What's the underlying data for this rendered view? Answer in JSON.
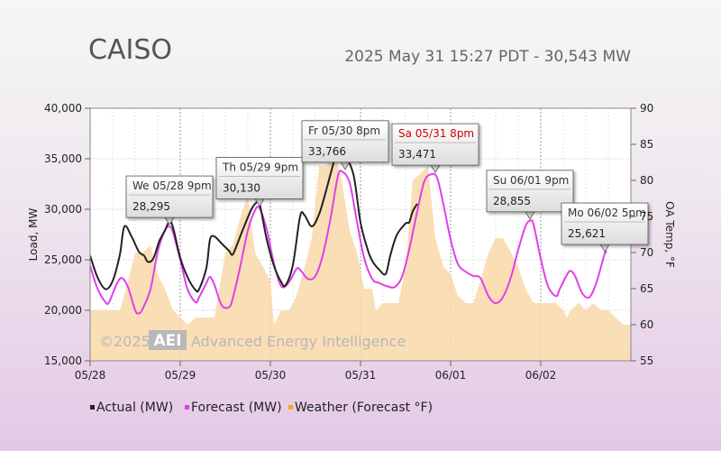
{
  "header": {
    "title": "CAISO",
    "subtitle": "2025 May 31 15:27 PDT - 30,543 MW"
  },
  "watermark": {
    "copyright": "©2025",
    "logo": "AEI",
    "company": "Advanced Energy Intelligence"
  },
  "colors": {
    "actual": "#222222",
    "forecast": "#e040e8",
    "weather": "#f9d8a8",
    "weather_legend": "#f5a623"
  },
  "chart_data": {
    "type": "line",
    "xlabel": "",
    "ylabel": "Load, MW",
    "y2label": "OA Temp, °F",
    "x_unit": "days since 05/28 00:00",
    "x_range": [
      0,
      6
    ],
    "ylim": [
      15000,
      40000
    ],
    "y2lim": [
      55,
      90
    ],
    "y_ticks": [
      "15,000",
      "20,000",
      "25,000",
      "30,000",
      "35,000",
      "40,000"
    ],
    "y_tick_values": [
      15000,
      20000,
      25000,
      30000,
      35000,
      40000
    ],
    "y2_ticks": [
      "55",
      "60",
      "65",
      "70",
      "75",
      "80",
      "85",
      "90"
    ],
    "y2_tick_values": [
      55,
      60,
      65,
      70,
      75,
      80,
      85,
      90
    ],
    "x_ticks": [
      "05/28",
      "05/29",
      "05/30",
      "05/31",
      "06/01",
      "06/02"
    ],
    "x_tick_values": [
      0,
      1,
      2,
      3,
      4,
      5
    ],
    "grid": true,
    "legend_position": "bottom",
    "legend": [
      "Actual (MW)",
      "Forecast (MW)",
      "Weather (Forecast °F)"
    ],
    "series": [
      {
        "name": "Actual (MW)",
        "axis": "left",
        "points": [
          [
            0,
            25400
          ],
          [
            0.08,
            23300
          ],
          [
            0.17,
            22100
          ],
          [
            0.25,
            22900
          ],
          [
            0.33,
            25500
          ],
          [
            0.38,
            28300
          ],
          [
            0.46,
            27300
          ],
          [
            0.54,
            25800
          ],
          [
            0.6,
            25400
          ],
          [
            0.64,
            24800
          ],
          [
            0.7,
            25100
          ],
          [
            0.77,
            26900
          ],
          [
            0.83,
            27900
          ],
          [
            0.88,
            28800
          ],
          [
            0.92,
            28200
          ],
          [
            1.0,
            25200
          ],
          [
            1.08,
            23300
          ],
          [
            1.17,
            22000
          ],
          [
            1.21,
            22100
          ],
          [
            1.29,
            24200
          ],
          [
            1.33,
            27000
          ],
          [
            1.38,
            27300
          ],
          [
            1.46,
            26600
          ],
          [
            1.54,
            25900
          ],
          [
            1.58,
            25500
          ],
          [
            1.63,
            26500
          ],
          [
            1.7,
            28100
          ],
          [
            1.79,
            30000
          ],
          [
            1.85,
            30700
          ],
          [
            1.88,
            30600
          ],
          [
            1.96,
            27000
          ],
          [
            2.04,
            24400
          ],
          [
            2.12,
            22800
          ],
          [
            2.17,
            22500
          ],
          [
            2.25,
            24500
          ],
          [
            2.33,
            29300
          ],
          [
            2.38,
            29400
          ],
          [
            2.46,
            28300
          ],
          [
            2.54,
            29500
          ],
          [
            2.62,
            31900
          ],
          [
            2.71,
            34900
          ],
          [
            2.76,
            36300
          ],
          [
            2.8,
            35900
          ],
          [
            2.92,
            33500
          ],
          [
            3.0,
            28700
          ],
          [
            3.08,
            26000
          ],
          [
            3.13,
            24900
          ],
          [
            3.21,
            24000
          ],
          [
            3.28,
            23600
          ],
          [
            3.33,
            25400
          ],
          [
            3.4,
            27400
          ],
          [
            3.5,
            28600
          ],
          [
            3.54,
            28700
          ],
          [
            3.58,
            29800
          ],
          [
            3.63,
            30543
          ]
        ]
      },
      {
        "name": "Forecast (MW)",
        "axis": "left",
        "points": [
          [
            0,
            24400
          ],
          [
            0.08,
            22200
          ],
          [
            0.17,
            20800
          ],
          [
            0.21,
            20800
          ],
          [
            0.29,
            22500
          ],
          [
            0.35,
            23200
          ],
          [
            0.42,
            22300
          ],
          [
            0.5,
            20000
          ],
          [
            0.54,
            19700
          ],
          [
            0.58,
            20100
          ],
          [
            0.67,
            22100
          ],
          [
            0.75,
            25800
          ],
          [
            0.83,
            27900
          ],
          [
            0.88,
            28300
          ],
          [
            0.92,
            27700
          ],
          [
            1.0,
            25000
          ],
          [
            1.08,
            22100
          ],
          [
            1.17,
            20800
          ],
          [
            1.21,
            21300
          ],
          [
            1.29,
            22700
          ],
          [
            1.33,
            23300
          ],
          [
            1.38,
            22500
          ],
          [
            1.46,
            20500
          ],
          [
            1.54,
            20300
          ],
          [
            1.58,
            21100
          ],
          [
            1.67,
            24500
          ],
          [
            1.75,
            27900
          ],
          [
            1.83,
            29900
          ],
          [
            1.88,
            30100
          ],
          [
            1.96,
            28000
          ],
          [
            2.04,
            24600
          ],
          [
            2.12,
            22400
          ],
          [
            2.2,
            22700
          ],
          [
            2.29,
            24100
          ],
          [
            2.33,
            24000
          ],
          [
            2.42,
            23100
          ],
          [
            2.5,
            23400
          ],
          [
            2.58,
            25400
          ],
          [
            2.67,
            29200
          ],
          [
            2.75,
            33300
          ],
          [
            2.8,
            33700
          ],
          [
            2.88,
            32600
          ],
          [
            2.96,
            28800
          ],
          [
            3.04,
            25200
          ],
          [
            3.13,
            23100
          ],
          [
            3.21,
            22700
          ],
          [
            3.29,
            22400
          ],
          [
            3.38,
            22300
          ],
          [
            3.46,
            23300
          ],
          [
            3.54,
            26000
          ],
          [
            3.63,
            29800
          ],
          [
            3.71,
            32800
          ],
          [
            3.79,
            33471
          ],
          [
            3.85,
            33100
          ],
          [
            3.92,
            30500
          ],
          [
            4.0,
            27000
          ],
          [
            4.08,
            24600
          ],
          [
            4.17,
            23800
          ],
          [
            4.25,
            23400
          ],
          [
            4.33,
            23200
          ],
          [
            4.42,
            21400
          ],
          [
            4.5,
            20700
          ],
          [
            4.58,
            21300
          ],
          [
            4.67,
            23300
          ],
          [
            4.75,
            26000
          ],
          [
            4.83,
            28300
          ],
          [
            4.88,
            28855
          ],
          [
            4.92,
            28500
          ],
          [
            5.0,
            25100
          ],
          [
            5.08,
            22400
          ],
          [
            5.17,
            21400
          ],
          [
            5.21,
            22100
          ],
          [
            5.29,
            23500
          ],
          [
            5.33,
            23900
          ],
          [
            5.38,
            23400
          ],
          [
            5.46,
            21700
          ],
          [
            5.54,
            21300
          ],
          [
            5.62,
            22800
          ],
          [
            5.71,
            25621
          ],
          [
            5.73,
            25700
          ]
        ]
      },
      {
        "name": "Weather (Forecast °F)",
        "axis": "right",
        "points": [
          [
            0,
            62
          ],
          [
            0.33,
            62
          ],
          [
            0.42,
            66
          ],
          [
            0.5,
            70
          ],
          [
            0.58,
            70
          ],
          [
            0.67,
            71
          ],
          [
            0.75,
            67
          ],
          [
            0.83,
            65
          ],
          [
            0.92,
            62
          ],
          [
            1.0,
            61
          ],
          [
            1.08,
            60
          ],
          [
            1.17,
            61
          ],
          [
            1.25,
            61
          ],
          [
            1.38,
            61
          ],
          [
            1.5,
            70
          ],
          [
            1.58,
            71
          ],
          [
            1.67,
            75
          ],
          [
            1.75,
            78
          ],
          [
            1.83,
            70
          ],
          [
            1.92,
            68
          ],
          [
            2.0,
            66
          ],
          [
            2.04,
            60
          ],
          [
            2.12,
            62
          ],
          [
            2.21,
            62
          ],
          [
            2.29,
            64
          ],
          [
            2.38,
            68
          ],
          [
            2.46,
            72
          ],
          [
            2.54,
            82
          ],
          [
            2.62,
            82
          ],
          [
            2.71,
            84
          ],
          [
            2.79,
            80
          ],
          [
            2.88,
            73
          ],
          [
            2.96,
            70
          ],
          [
            3.04,
            65
          ],
          [
            3.13,
            65
          ],
          [
            3.17,
            62
          ],
          [
            3.25,
            63
          ],
          [
            3.33,
            63
          ],
          [
            3.42,
            63
          ],
          [
            3.5,
            68
          ],
          [
            3.58,
            80
          ],
          [
            3.67,
            81
          ],
          [
            3.75,
            82
          ],
          [
            3.83,
            72
          ],
          [
            3.92,
            68
          ],
          [
            4.0,
            67
          ],
          [
            4.08,
            64
          ],
          [
            4.17,
            63
          ],
          [
            4.25,
            63
          ],
          [
            4.33,
            66
          ],
          [
            4.42,
            70
          ],
          [
            4.5,
            72
          ],
          [
            4.58,
            72
          ],
          [
            4.67,
            70
          ],
          [
            4.75,
            68
          ],
          [
            4.83,
            65
          ],
          [
            4.92,
            63
          ],
          [
            5.0,
            63
          ],
          [
            5.17,
            63
          ],
          [
            5.25,
            62
          ],
          [
            5.29,
            61
          ],
          [
            5.33,
            62
          ],
          [
            5.42,
            63
          ],
          [
            5.5,
            62
          ],
          [
            5.58,
            63
          ],
          [
            5.67,
            62
          ],
          [
            5.75,
            62
          ],
          [
            5.83,
            61
          ],
          [
            5.92,
            60
          ],
          [
            6.0,
            60
          ]
        ]
      }
    ],
    "annotations": [
      {
        "x": 0.88,
        "y": 28295,
        "label": "We 05/28 9pm",
        "value": "28,295",
        "highlight": false
      },
      {
        "x": 1.88,
        "y": 30130,
        "label": "Th 05/29 9pm",
        "value": "30,130",
        "highlight": false
      },
      {
        "x": 2.83,
        "y": 33766,
        "label": "Fr 05/30 8pm",
        "value": "33,766",
        "highlight": false
      },
      {
        "x": 3.83,
        "y": 33471,
        "label": "Sa 05/31 8pm",
        "value": "33,471",
        "highlight": true
      },
      {
        "x": 4.88,
        "y": 28855,
        "label": "Su 06/01 9pm",
        "value": "28,855",
        "highlight": false
      },
      {
        "x": 5.71,
        "y": 25621,
        "label": "Mo 06/02 5pm",
        "value": "25,621",
        "highlight": false
      }
    ]
  }
}
